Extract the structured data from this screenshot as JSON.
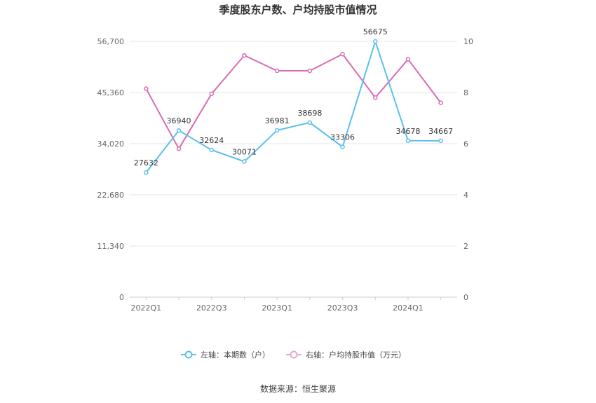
{
  "chart_data": {
    "type": "line",
    "title": "季度股东户数、户均持股市值情况",
    "categories": [
      "2022Q1",
      "2022Q2",
      "2022Q3",
      "2022Q4",
      "2023Q1",
      "2023Q2",
      "2023Q3",
      "2023Q4",
      "2024Q1",
      "2024Q2"
    ],
    "x_tick_labels": [
      "2022Q1",
      "2022Q3",
      "2023Q1",
      "2023Q3",
      "2024Q1"
    ],
    "left_axis": {
      "ticks": [
        "0",
        "11,340",
        "22,680",
        "34,020",
        "45,360",
        "56,700"
      ],
      "ylim": [
        0,
        56700
      ]
    },
    "right_axis": {
      "ticks": [
        "0",
        "2",
        "4",
        "6",
        "8",
        "10"
      ],
      "ylim": [
        0,
        10
      ]
    },
    "series": [
      {
        "name": "左轴：本期数（户）",
        "axis": "left",
        "color": "#5bc0eb",
        "values": [
          27632,
          36940,
          32624,
          30071,
          36981,
          38698,
          33306,
          56675,
          34678,
          34667
        ],
        "labels": [
          "27632",
          "36940",
          "32624",
          "30071",
          "36981",
          "38698",
          "33306",
          "56675",
          "34678",
          "34667"
        ]
      },
      {
        "name": "右轴：户均持股市值（万元）",
        "axis": "right",
        "color": "#d96bb5",
        "values": [
          8.15,
          5.8,
          7.95,
          9.45,
          8.85,
          8.85,
          9.5,
          7.8,
          9.3,
          7.6
        ]
      }
    ],
    "grid": true,
    "legend_position": "bottom"
  },
  "source": "数据来源：恒生聚源"
}
